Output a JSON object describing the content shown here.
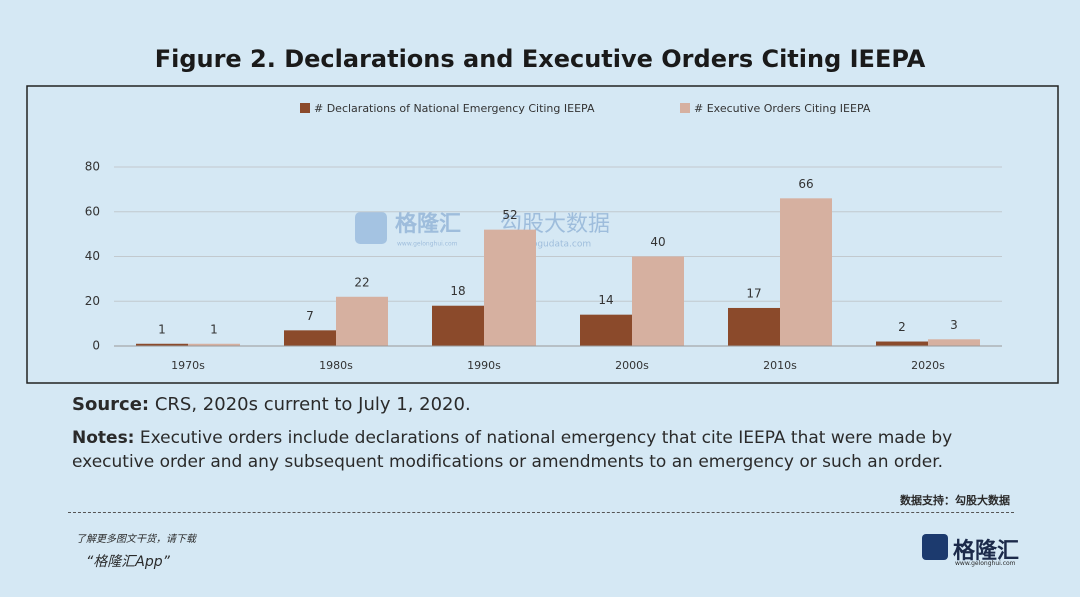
{
  "title": "Figure 2. Declarations and Executive Orders Citing IEEPA",
  "chart_data": {
    "type": "bar",
    "categories": [
      "1970s",
      "1980s",
      "1990s",
      "2000s",
      "2010s",
      "2020s"
    ],
    "series": [
      {
        "name": "# Declarations of National Emergency Citing IEEPA",
        "color": "#8b4a2b",
        "values": [
          1,
          7,
          18,
          14,
          17,
          2
        ]
      },
      {
        "name": "# Executive Orders Citing IEEPA",
        "color": "#d6b0a0",
        "values": [
          1,
          22,
          52,
          40,
          66,
          3
        ]
      }
    ],
    "ylim": [
      0,
      80
    ],
    "yticks": [
      0,
      20,
      40,
      60,
      80
    ],
    "grid": true,
    "legend": "top"
  },
  "source": {
    "label": "Source:",
    "text": "CRS, 2020s current to July 1, 2020."
  },
  "notes": {
    "label": "Notes:",
    "text": "Executive orders include declarations of national emergency that cite IEEPA that were made by executive order and any subsequent modifications or amendments to an emergency or such an order."
  },
  "data_credit": "数据支持：勾股大数据",
  "footer": {
    "line1": "了解更多图文干货，请下载",
    "line2": "“格隆汇App”",
    "logo": "格隆汇",
    "logo_sub": "www.gelonghui.com"
  },
  "watermark": {
    "brand": "格隆汇",
    "brand_sub": "www.gelonghui.com",
    "partner": "勾股大数据",
    "partner_sub": "www.gogudata.com"
  }
}
